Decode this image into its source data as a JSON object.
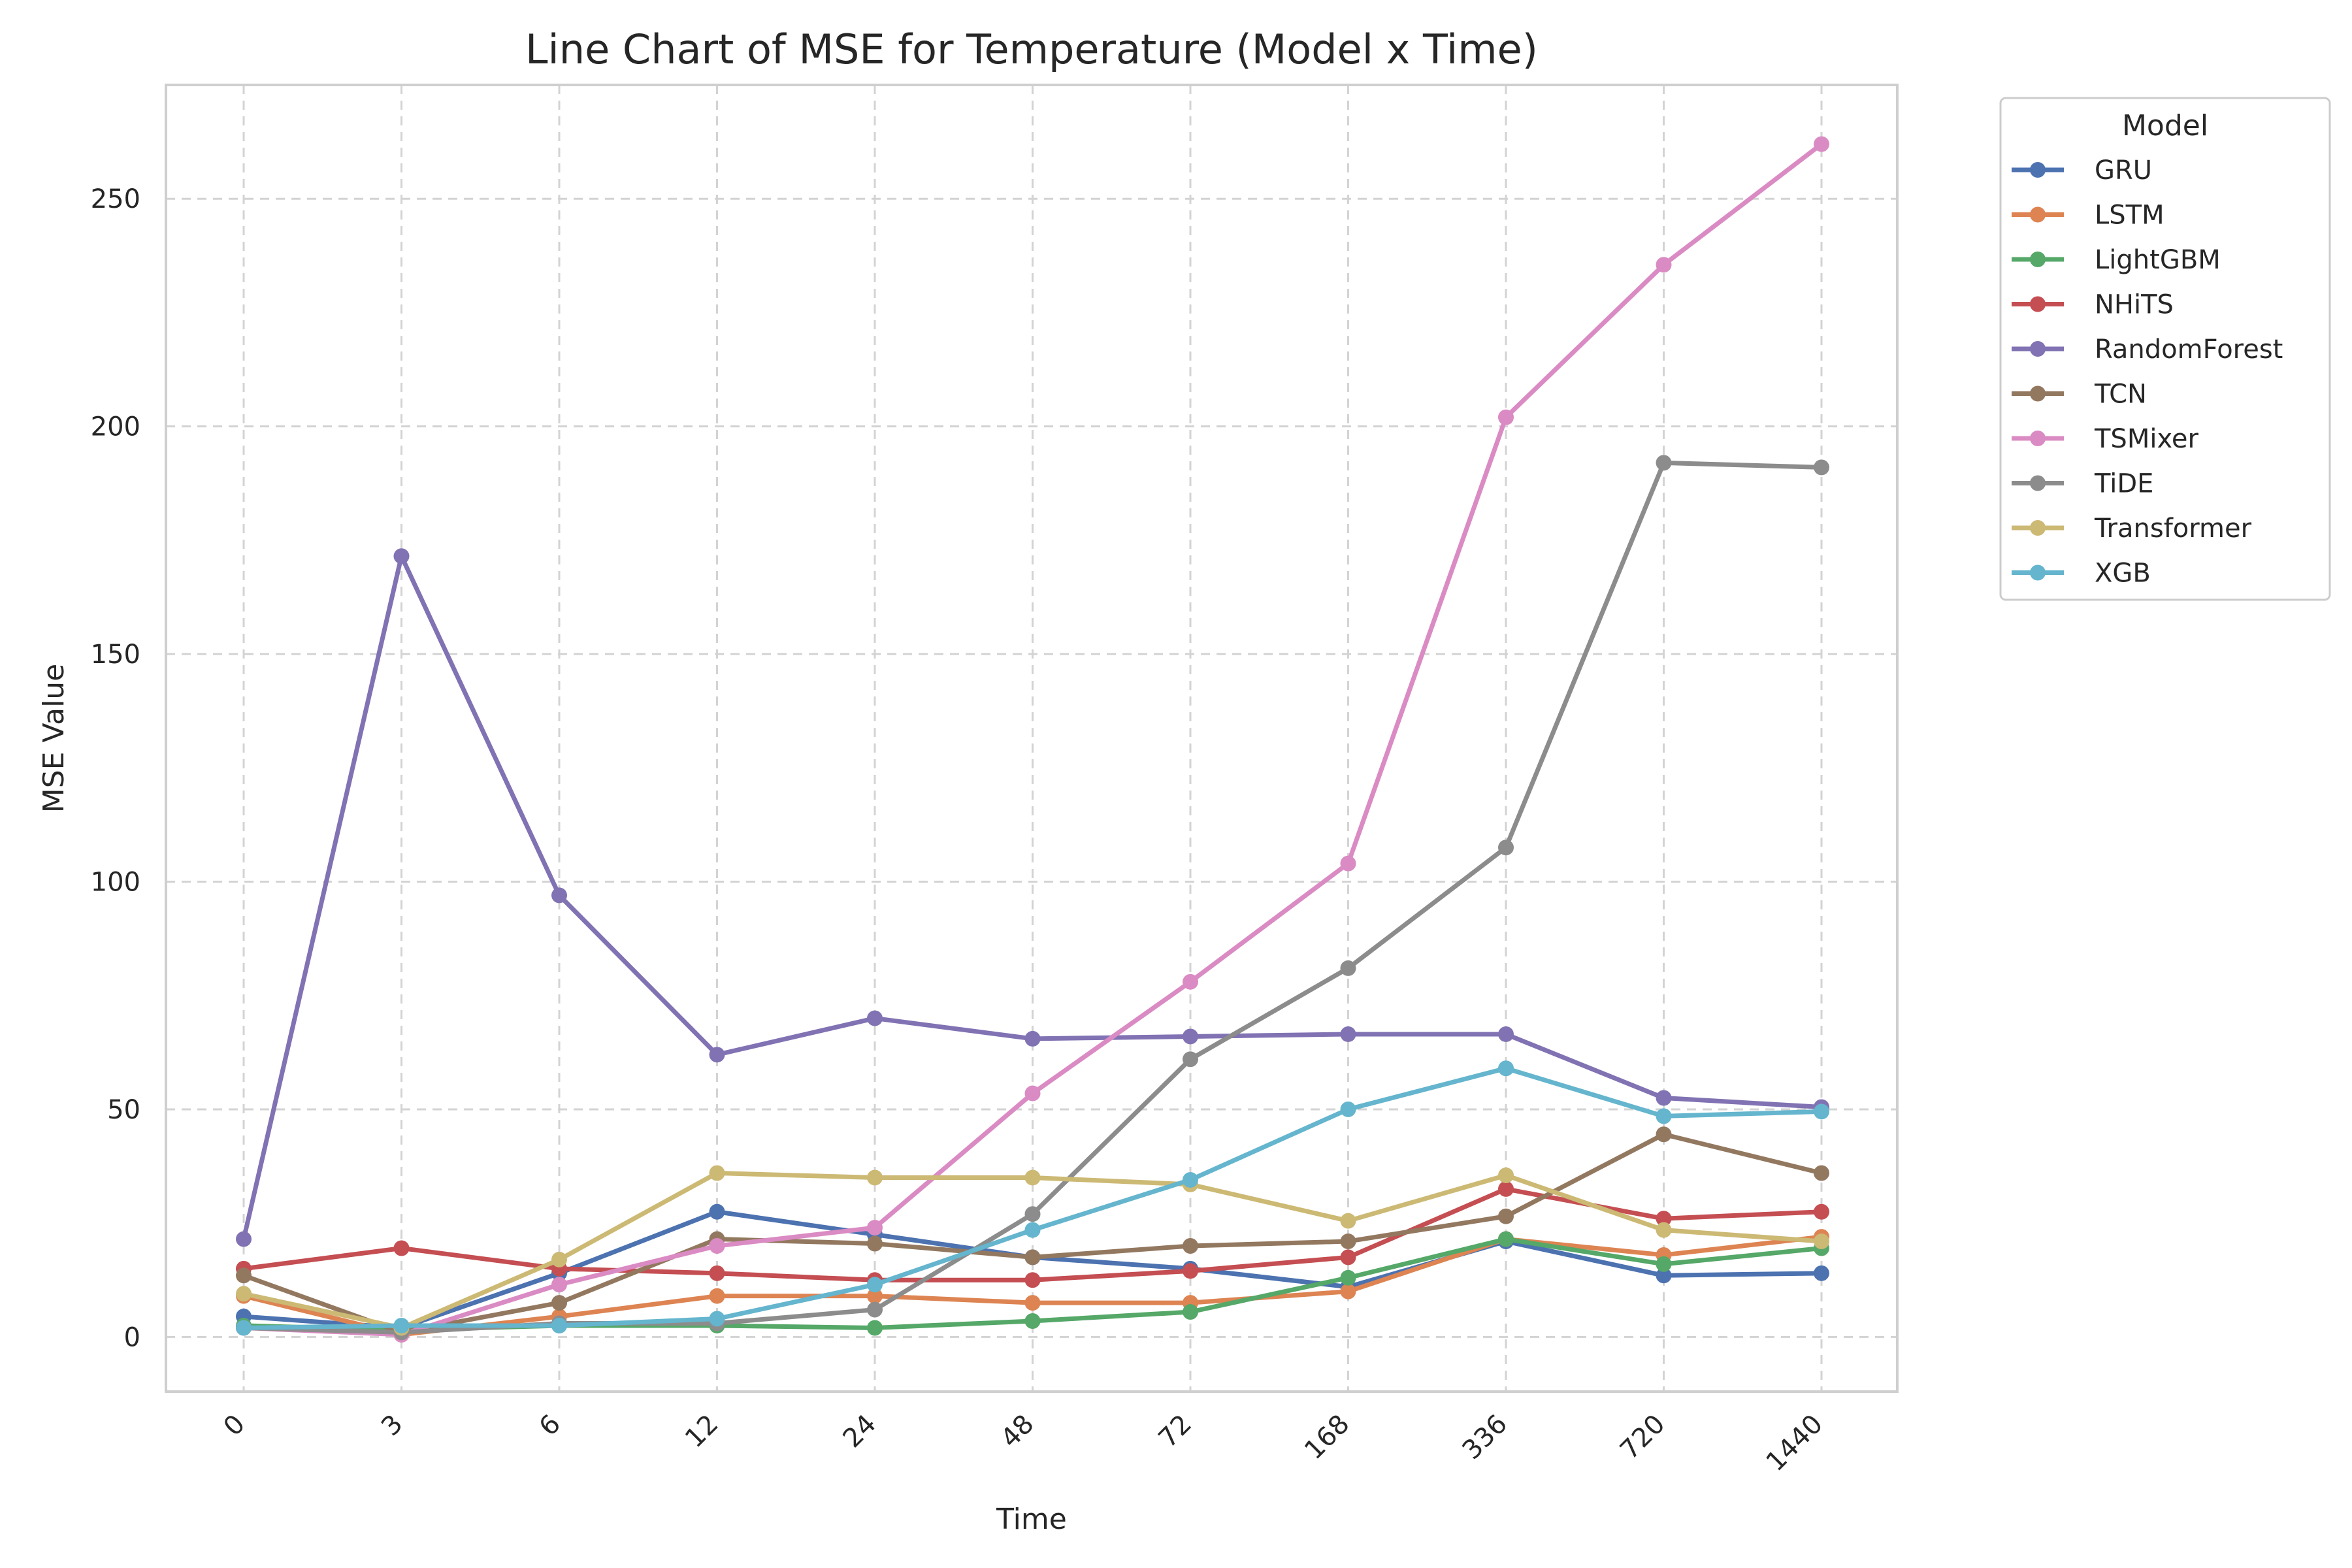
{
  "chart_data": {
    "type": "line",
    "title": "Line Chart of MSE for Temperature (Model x Time)",
    "xlabel": "Time",
    "ylabel": "MSE Value",
    "categories": [
      "0",
      "3",
      "6",
      "12",
      "24",
      "48",
      "72",
      "168",
      "336",
      "720",
      "1440"
    ],
    "ylim": [
      -12,
      275
    ],
    "yticks": [
      0,
      50,
      100,
      150,
      200,
      250
    ],
    "grid": true,
    "legend": {
      "title": "Model",
      "placement": "outside-top-right"
    },
    "series": [
      {
        "name": "GRU",
        "color": "#4c72b0",
        "values": [
          4.5,
          2,
          14,
          27.5,
          22.5,
          17.5,
          15,
          11,
          21,
          13.5,
          14
        ]
      },
      {
        "name": "LSTM",
        "color": "#dd8452",
        "values": [
          9,
          0.5,
          4.5,
          9,
          9,
          7.5,
          7.5,
          10,
          21.5,
          18,
          22
        ]
      },
      {
        "name": "LightGBM",
        "color": "#55a868",
        "values": [
          2.5,
          1.5,
          2.5,
          2.5,
          2,
          3.5,
          5.5,
          13,
          21.5,
          16,
          19.5
        ]
      },
      {
        "name": "NHiTS",
        "color": "#c44e52",
        "values": [
          15,
          19.5,
          15,
          14,
          12.5,
          12.5,
          14.5,
          17.5,
          32.5,
          26,
          27.5
        ]
      },
      {
        "name": "RandomForest",
        "color": "#8172b3",
        "values": [
          21.5,
          171.5,
          97,
          62,
          70,
          65.5,
          66,
          66.5,
          66.5,
          52.5,
          50.5
        ]
      },
      {
        "name": "TCN",
        "color": "#937860",
        "values": [
          13.5,
          1,
          7.5,
          21.5,
          20.5,
          17.5,
          20,
          21,
          26.5,
          44.5,
          36
        ]
      },
      {
        "name": "TSMixer",
        "color": "#da8bc3",
        "values": [
          2,
          0.5,
          11.5,
          20,
          24,
          53.5,
          78,
          104,
          202,
          235.5,
          262
        ]
      },
      {
        "name": "TiDE",
        "color": "#8c8c8c",
        "values": [
          2,
          1,
          3,
          3,
          6,
          27,
          61,
          81,
          107.5,
          192,
          191
        ]
      },
      {
        "name": "Transformer",
        "color": "#ccb974",
        "values": [
          9.5,
          2,
          17,
          36,
          35,
          35,
          33.5,
          25.5,
          35.5,
          23.5,
          21
        ]
      },
      {
        "name": "XGB",
        "color": "#64b5cd",
        "values": [
          2,
          2.5,
          2.5,
          4,
          11.5,
          23.5,
          34.5,
          50,
          59,
          48.5,
          49.5
        ]
      }
    ]
  }
}
